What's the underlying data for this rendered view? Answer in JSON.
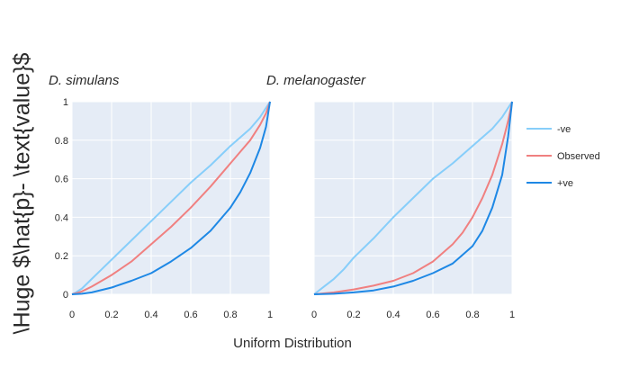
{
  "chart_data": {
    "type": "line",
    "ylabel": "\\Huge $\\hat{p}- \\text{value}$",
    "xlabel": "Uniform Distribution",
    "xlim": [
      0,
      1
    ],
    "ylim": [
      0,
      1
    ],
    "grid": true,
    "legend_position": "right",
    "colors": {
      "neg": "#87cefa",
      "observed": "#f08080",
      "pos": "#1e88e5",
      "panel_bg": "#e5ecf6"
    },
    "x_ticks": [
      "0",
      "0.2",
      "0.4",
      "0.6",
      "0.8",
      "1"
    ],
    "y_ticks": [
      "0",
      "0.2",
      "0.4",
      "0.6",
      "0.8",
      "1"
    ],
    "legend": [
      {
        "key": "neg",
        "label": "-ve"
      },
      {
        "key": "observed",
        "label": "Observed"
      },
      {
        "key": "pos",
        "label": "+ve"
      }
    ],
    "panels": [
      {
        "title": "D. simulans",
        "series": [
          {
            "key": "neg",
            "x": [
              0,
              0.02,
              0.05,
              0.1,
              0.15,
              0.2,
              0.3,
              0.4,
              0.5,
              0.6,
              0.7,
              0.8,
              0.9,
              0.95,
              1
            ],
            "y": [
              0,
              0.01,
              0.03,
              0.08,
              0.13,
              0.18,
              0.28,
              0.38,
              0.48,
              0.58,
              0.67,
              0.77,
              0.86,
              0.92,
              1
            ]
          },
          {
            "key": "observed",
            "x": [
              0,
              0.02,
              0.05,
              0.1,
              0.2,
              0.3,
              0.4,
              0.5,
              0.6,
              0.7,
              0.8,
              0.85,
              0.9,
              0.95,
              0.98,
              1
            ],
            "y": [
              0,
              0.005,
              0.015,
              0.04,
              0.1,
              0.17,
              0.26,
              0.35,
              0.45,
              0.56,
              0.68,
              0.74,
              0.8,
              0.88,
              0.94,
              1
            ]
          },
          {
            "key": "pos",
            "x": [
              0,
              0.05,
              0.1,
              0.2,
              0.3,
              0.4,
              0.5,
              0.6,
              0.7,
              0.8,
              0.85,
              0.9,
              0.95,
              0.98,
              1
            ],
            "y": [
              0,
              0.003,
              0.01,
              0.035,
              0.07,
              0.11,
              0.17,
              0.24,
              0.33,
              0.45,
              0.53,
              0.63,
              0.76,
              0.87,
              1
            ]
          }
        ]
      },
      {
        "title": "D. melanogaster",
        "series": [
          {
            "key": "neg",
            "x": [
              0,
              0.05,
              0.1,
              0.15,
              0.2,
              0.3,
              0.4,
              0.5,
              0.6,
              0.7,
              0.8,
              0.9,
              0.95,
              1
            ],
            "y": [
              0,
              0.04,
              0.08,
              0.13,
              0.19,
              0.29,
              0.4,
              0.5,
              0.6,
              0.68,
              0.77,
              0.86,
              0.92,
              1
            ]
          },
          {
            "key": "observed",
            "x": [
              0,
              0.1,
              0.2,
              0.3,
              0.4,
              0.5,
              0.6,
              0.7,
              0.75,
              0.8,
              0.85,
              0.9,
              0.95,
              0.98,
              1
            ],
            "y": [
              0,
              0.01,
              0.025,
              0.045,
              0.07,
              0.11,
              0.17,
              0.26,
              0.32,
              0.4,
              0.5,
              0.62,
              0.78,
              0.9,
              1
            ]
          },
          {
            "key": "pos",
            "x": [
              0,
              0.1,
              0.2,
              0.3,
              0.4,
              0.5,
              0.6,
              0.7,
              0.8,
              0.85,
              0.9,
              0.95,
              0.98,
              1
            ],
            "y": [
              0,
              0.003,
              0.01,
              0.02,
              0.04,
              0.07,
              0.11,
              0.16,
              0.25,
              0.33,
              0.45,
              0.62,
              0.82,
              1
            ]
          }
        ]
      }
    ]
  }
}
